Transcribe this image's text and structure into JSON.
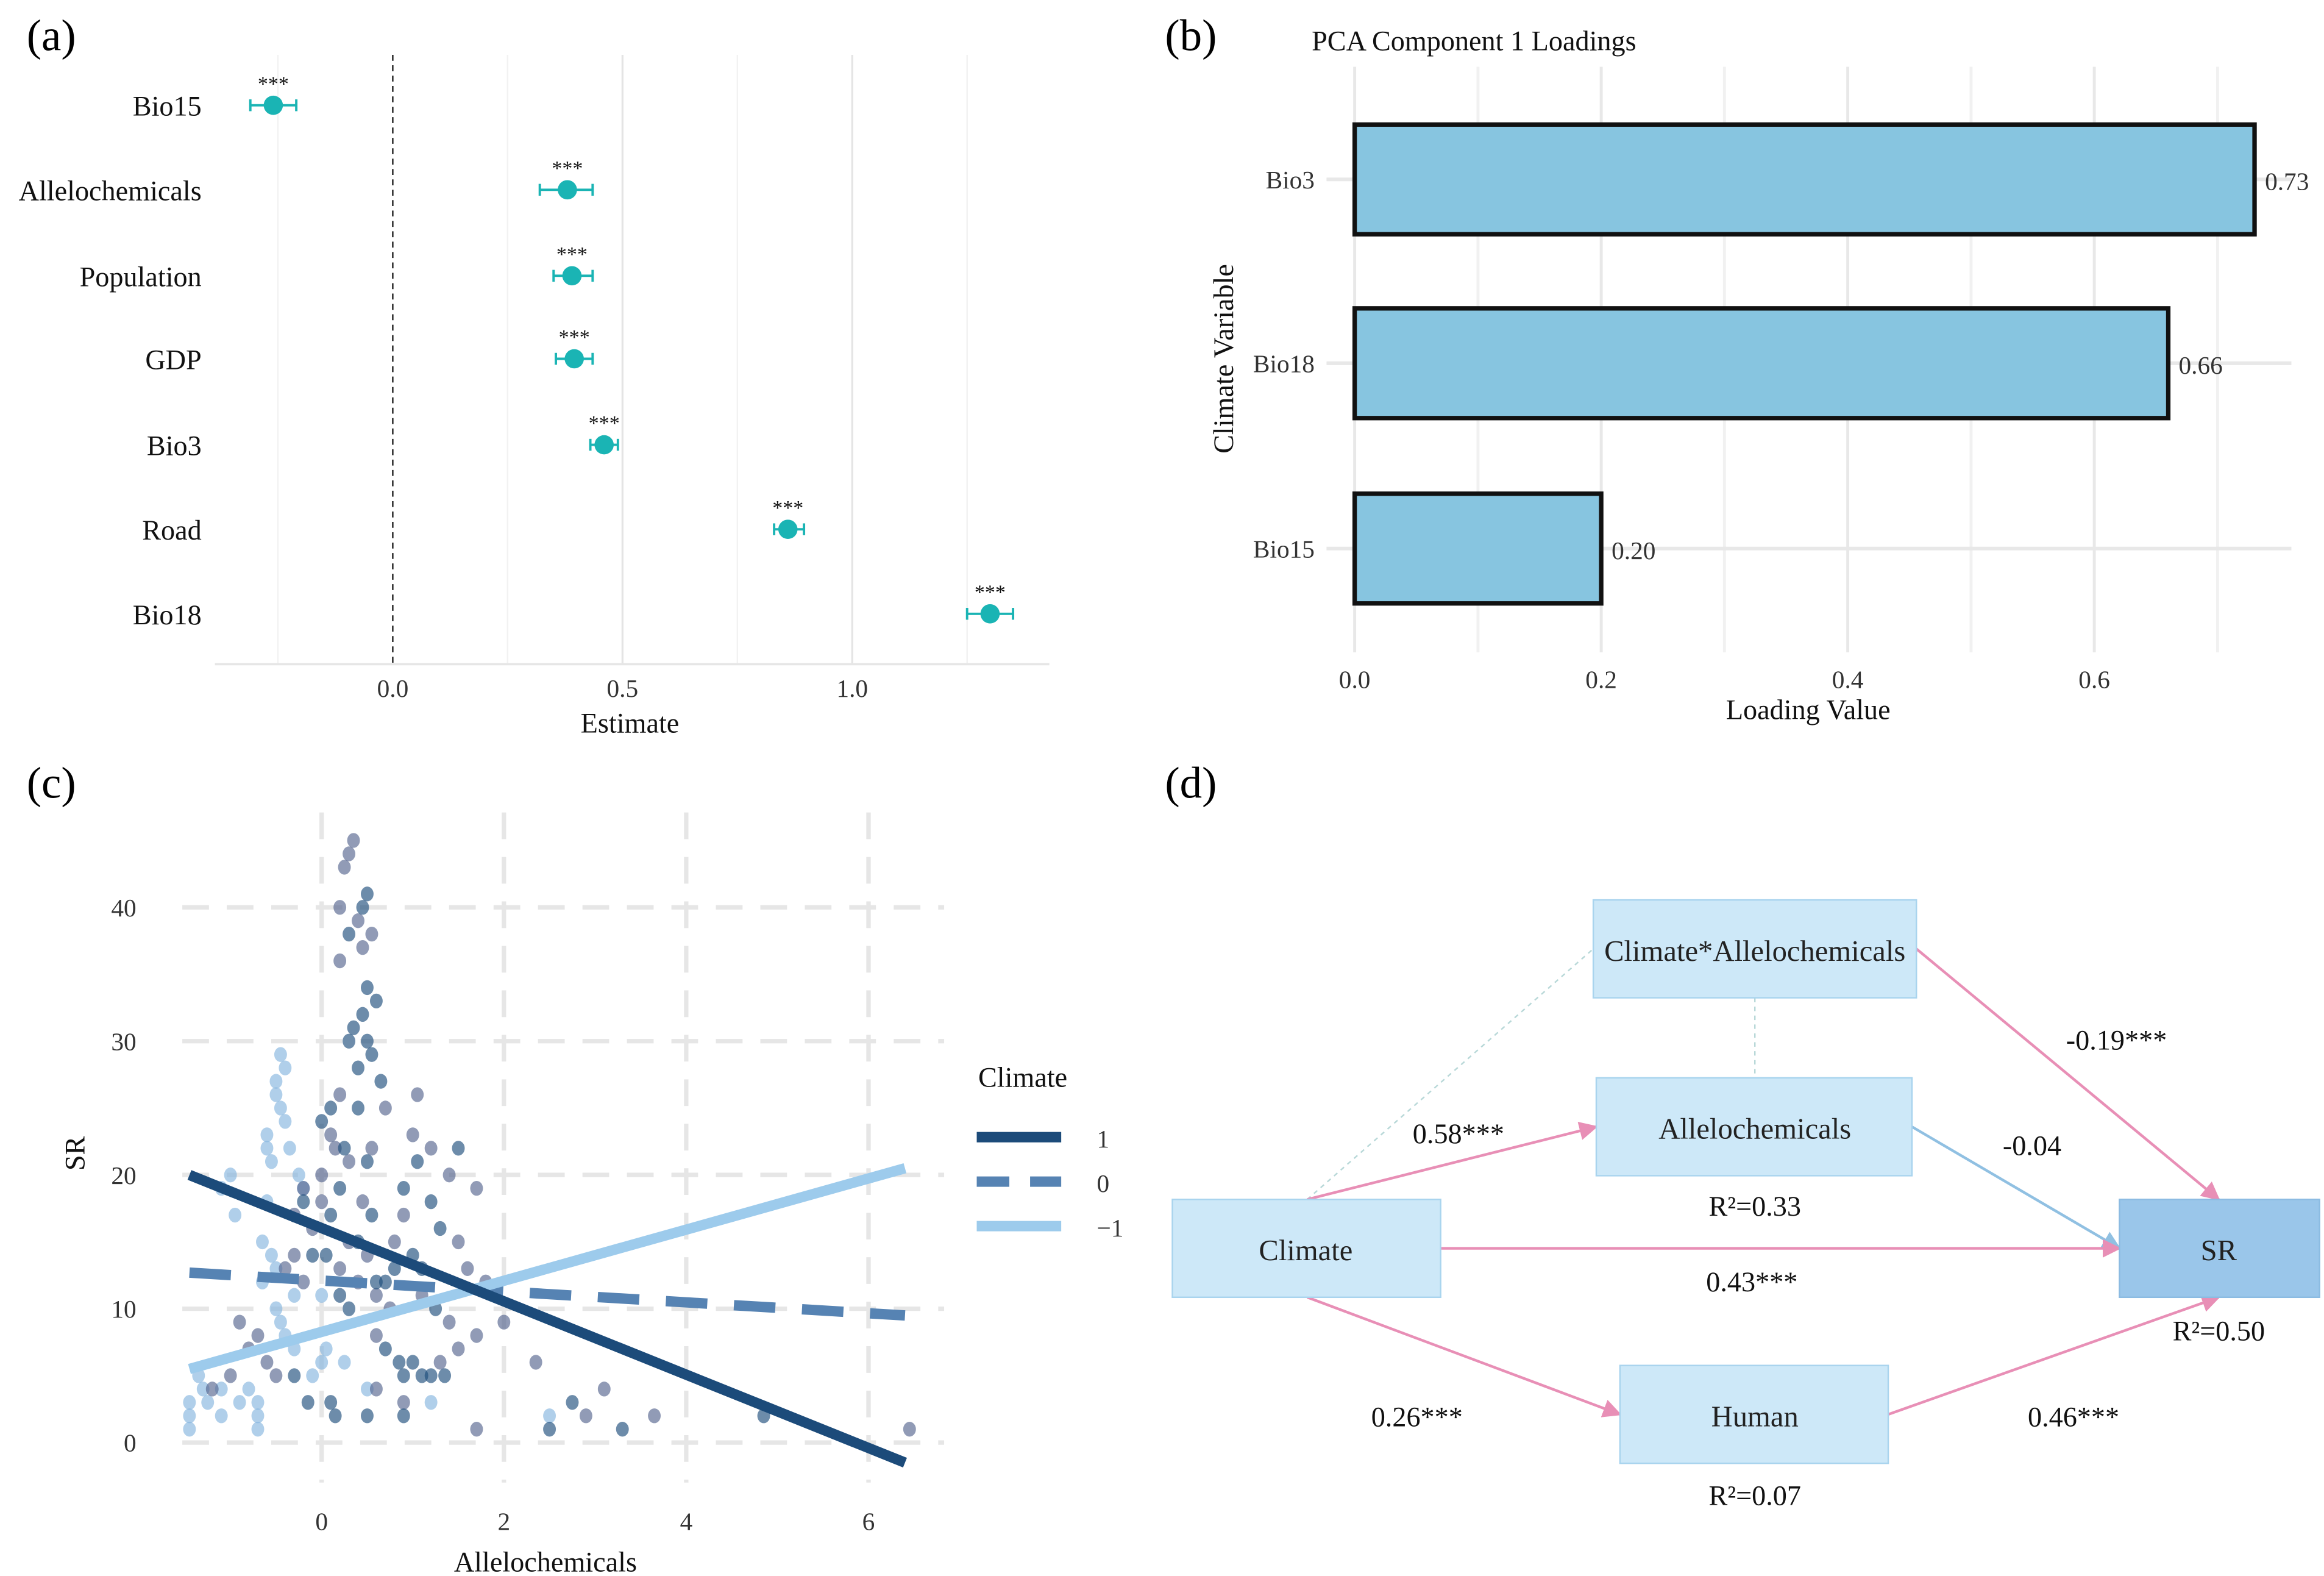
{
  "panels": {
    "a": "(a)",
    "b": "(b)",
    "c": "(c)",
    "d": "(d)"
  },
  "chart_data": [
    {
      "id": "a",
      "type": "scatter",
      "title": "",
      "xlabel": "Estimate",
      "ylabel": "",
      "xlim": [
        -0.38,
        1.43
      ],
      "xticks": [
        "0.0",
        "0.5",
        "1.0"
      ],
      "xtick_values": [
        0,
        0.5,
        1.0
      ],
      "reference_line": 0,
      "categories": [
        "Bio15",
        "Allelochemicals",
        "Population",
        "GDP",
        "Bio3",
        "Road",
        "Bio18"
      ],
      "estimates": [
        -0.26,
        0.38,
        0.39,
        0.395,
        0.46,
        0.86,
        1.3
      ],
      "ci_low": [
        -0.31,
        0.32,
        0.35,
        0.355,
        0.43,
        0.83,
        1.25
      ],
      "ci_high": [
        -0.21,
        0.435,
        0.435,
        0.435,
        0.49,
        0.895,
        1.35
      ],
      "significance": [
        "***",
        "***",
        "***",
        "***",
        "***",
        "***",
        "***"
      ],
      "color": "#1ab4b4"
    },
    {
      "id": "b",
      "type": "bar",
      "title": "PCA Component 1 Loadings",
      "xlabel": "Loading Value",
      "ylabel": "Climate Variable",
      "categories": [
        "Bio3",
        "Bio18",
        "Bio15"
      ],
      "values": [
        0.73,
        0.66,
        0.2
      ],
      "value_labels": [
        "0.73",
        "0.66",
        "0.20"
      ],
      "xticks": [
        "0.0",
        "0.2",
        "0.4",
        "0.6"
      ],
      "xtick_values": [
        0,
        0.2,
        0.4,
        0.6
      ],
      "xlim": [
        0,
        0.76
      ],
      "color": "#87c5e0"
    },
    {
      "id": "c",
      "type": "scatter",
      "xlabel": "Allelochemicals",
      "ylabel": "SR",
      "xlim": [
        -1.5,
        6.6
      ],
      "ylim": [
        -3,
        48
      ],
      "xticks": [
        "0",
        "2",
        "4",
        "6"
      ],
      "xtick_values": [
        0,
        2,
        4,
        6
      ],
      "yticks": [
        "0",
        "10",
        "20",
        "30",
        "40"
      ],
      "ytick_values": [
        0,
        10,
        20,
        30,
        40
      ],
      "legend": {
        "title": "Climate",
        "position": "right",
        "entries": [
          {
            "label": "1",
            "color": "#1c4b7a",
            "style": "solid"
          },
          {
            "label": "0",
            "color": "#5683b3",
            "style": "dashed"
          },
          {
            "label": "−1",
            "color": "#9dcbec",
            "style": "solid"
          }
        ]
      },
      "lines": [
        {
          "climate": "1",
          "x": [
            -1.45,
            6.4
          ],
          "y": [
            20,
            -1.5
          ]
        },
        {
          "climate": "0",
          "x": [
            -1.45,
            6.4
          ],
          "y": [
            12.7,
            9.5
          ]
        },
        {
          "climate": "−1",
          "x": [
            -1.45,
            6.4
          ],
          "y": [
            5.5,
            20.5
          ]
        }
      ],
      "point_colors": {
        "1": "#1f4e7d",
        "0": "#56658f",
        "-1": "#86b6df"
      },
      "points": [
        [
          -1.45,
          1,
          -1
        ],
        [
          -1.45,
          2,
          -1
        ],
        [
          -1.45,
          3,
          -1
        ],
        [
          -1.35,
          5,
          -1
        ],
        [
          -1.3,
          4,
          -1
        ],
        [
          -1.25,
          3,
          -1
        ],
        [
          -1.1,
          2,
          -1
        ],
        [
          -1.1,
          4,
          -1
        ],
        [
          -1.0,
          20,
          -1
        ],
        [
          -1.1,
          19,
          -1
        ],
        [
          -0.95,
          17,
          -1
        ],
        [
          -0.9,
          3,
          -1
        ],
        [
          -0.8,
          4,
          -1
        ],
        [
          -0.7,
          1,
          -1
        ],
        [
          -0.7,
          2,
          -1
        ],
        [
          -0.7,
          3,
          -1
        ],
        [
          -0.65,
          15,
          -1
        ],
        [
          -0.6,
          18,
          -1
        ],
        [
          -0.6,
          22,
          -1
        ],
        [
          -0.6,
          23,
          -1
        ],
        [
          -0.55,
          21,
          -1
        ],
        [
          -0.5,
          26,
          -1
        ],
        [
          -0.5,
          27,
          -1
        ],
        [
          -0.45,
          29,
          -1
        ],
        [
          -0.45,
          25,
          -1
        ],
        [
          -0.4,
          24,
          -1
        ],
        [
          -0.4,
          28,
          -1
        ],
        [
          -0.35,
          22,
          -1
        ],
        [
          -0.5,
          10,
          -1
        ],
        [
          -0.45,
          9,
          -1
        ],
        [
          -0.4,
          8,
          -1
        ],
        [
          -0.3,
          7,
          -1
        ],
        [
          -0.1,
          5,
          -1
        ],
        [
          0.0,
          6,
          -1
        ],
        [
          0.05,
          7,
          -1
        ],
        [
          0.25,
          6,
          -1
        ],
        [
          0.5,
          4,
          -1
        ],
        [
          1.2,
          3,
          -1
        ],
        [
          2.5,
          2,
          -1
        ],
        [
          -0.55,
          14,
          -1
        ],
        [
          -0.5,
          13,
          -1
        ],
        [
          -0.65,
          12,
          -1
        ],
        [
          -0.3,
          11,
          -1
        ],
        [
          -0.25,
          20,
          -1
        ],
        [
          -0.2,
          19,
          -1
        ],
        [
          0,
          11,
          -1
        ],
        [
          -1.2,
          4,
          0
        ],
        [
          -1.0,
          5,
          0
        ],
        [
          -0.9,
          9,
          0
        ],
        [
          -0.8,
          7,
          0
        ],
        [
          -0.7,
          8,
          0
        ],
        [
          -0.6,
          6,
          0
        ],
        [
          -0.5,
          5,
          0
        ],
        [
          -0.4,
          13,
          0
        ],
        [
          -0.3,
          14,
          0
        ],
        [
          -0.3,
          17,
          0
        ],
        [
          -0.2,
          12,
          0
        ],
        [
          -0.2,
          19,
          0
        ],
        [
          -0.1,
          16,
          0
        ],
        [
          0,
          20,
          0
        ],
        [
          0,
          18,
          0
        ],
        [
          0.1,
          23,
          0
        ],
        [
          0.15,
          22,
          0
        ],
        [
          0.2,
          26,
          0
        ],
        [
          0.2,
          13,
          0
        ],
        [
          0.3,
          15,
          0
        ],
        [
          0.3,
          21,
          0
        ],
        [
          0.4,
          12,
          0
        ],
        [
          0.45,
          18,
          0
        ],
        [
          0.5,
          14,
          0
        ],
        [
          0.55,
          22,
          0
        ],
        [
          0.6,
          11,
          0
        ],
        [
          0.6,
          8,
          0
        ],
        [
          0.7,
          25,
          0
        ],
        [
          0.75,
          10,
          0
        ],
        [
          0.8,
          15,
          0
        ],
        [
          0.9,
          17,
          0
        ],
        [
          1.0,
          23,
          0
        ],
        [
          1.05,
          26,
          0
        ],
        [
          1.1,
          11,
          0
        ],
        [
          1.2,
          22,
          0
        ],
        [
          1.3,
          6,
          0
        ],
        [
          1.4,
          9,
          0
        ],
        [
          1.5,
          7,
          0
        ],
        [
          1.6,
          13,
          0
        ],
        [
          1.7,
          8,
          0
        ],
        [
          1.8,
          12,
          0
        ],
        [
          2.0,
          9,
          0
        ],
        [
          2.35,
          6,
          0
        ],
        [
          2.9,
          2,
          0
        ],
        [
          3.1,
          4,
          0
        ],
        [
          3.65,
          2,
          0
        ],
        [
          6.45,
          1,
          0
        ],
        [
          1.7,
          1,
          0
        ],
        [
          0.9,
          3,
          0
        ],
        [
          0.6,
          4,
          0
        ],
        [
          1.4,
          20,
          0
        ],
        [
          1.7,
          19,
          0
        ],
        [
          1.5,
          15,
          0
        ],
        [
          0.25,
          43,
          0
        ],
        [
          0.3,
          44,
          0
        ],
        [
          0.35,
          45,
          0
        ],
        [
          0.2,
          40,
          0
        ],
        [
          0.4,
          39,
          0
        ],
        [
          0.45,
          37,
          0
        ],
        [
          0.55,
          38,
          0
        ],
        [
          0.2,
          36,
          0
        ],
        [
          0,
          24,
          1
        ],
        [
          0.1,
          25,
          1
        ],
        [
          0.05,
          14,
          1
        ],
        [
          0.1,
          17,
          1
        ],
        [
          0.2,
          19,
          1
        ],
        [
          0.25,
          22,
          1
        ],
        [
          0.3,
          30,
          1
        ],
        [
          0.35,
          31,
          1
        ],
        [
          0.4,
          28,
          1
        ],
        [
          0.45,
          32,
          1
        ],
        [
          0.5,
          30,
          1
        ],
        [
          0.55,
          29,
          1
        ],
        [
          0.6,
          33,
          1
        ],
        [
          0.65,
          27,
          1
        ],
        [
          0.5,
          41,
          1
        ],
        [
          0.45,
          40,
          1
        ],
        [
          0.3,
          38,
          1
        ],
        [
          0.5,
          34,
          1
        ],
        [
          0.4,
          25,
          1
        ],
        [
          0.5,
          21,
          1
        ],
        [
          0.55,
          17,
          1
        ],
        [
          0.6,
          12,
          1
        ],
        [
          0.7,
          7,
          1
        ],
        [
          0.8,
          13,
          1
        ],
        [
          0.9,
          19,
          1
        ],
        [
          1.05,
          21,
          1
        ],
        [
          1.1,
          13,
          1
        ],
        [
          1.25,
          10,
          1
        ],
        [
          1.3,
          16,
          1
        ],
        [
          1.2,
          18,
          1
        ],
        [
          1.5,
          22,
          1
        ],
        [
          1.0,
          6,
          1
        ],
        [
          1.1,
          5,
          1
        ],
        [
          1.2,
          5,
          1
        ],
        [
          1.35,
          5,
          1
        ],
        [
          0.9,
          5,
          1
        ],
        [
          0.85,
          6,
          1
        ],
        [
          0.15,
          2,
          1
        ],
        [
          0.5,
          2,
          1
        ],
        [
          0.9,
          2,
          1
        ],
        [
          0.1,
          3,
          1
        ],
        [
          -0.15,
          3,
          1
        ],
        [
          -0.3,
          5,
          1
        ],
        [
          -0.2,
          18,
          1
        ],
        [
          2.75,
          3,
          1
        ],
        [
          3.3,
          1,
          1
        ],
        [
          4.85,
          2,
          1
        ],
        [
          2.5,
          1,
          1
        ],
        [
          0.4,
          15,
          1
        ],
        [
          0.7,
          12,
          1
        ],
        [
          1.0,
          14,
          1
        ],
        [
          0.2,
          11,
          1
        ],
        [
          0.3,
          10,
          1
        ],
        [
          -0.1,
          14,
          1
        ]
      ]
    },
    {
      "id": "d",
      "type": "diagram",
      "nodes": {
        "climate": "Climate",
        "interaction": "Climate*Allelochemicals",
        "allelochemicals": "Allelochemicals",
        "human": "Human",
        "sr": "SR"
      },
      "r2": {
        "allelochemicals": "R²=0.33",
        "human": "R²=0.07",
        "sr": "R²=0.50"
      },
      "paths": {
        "climate_allelochemicals": "0.58***",
        "allelochemicals_sr": "-0.04",
        "interaction_sr": "-0.19***",
        "climate_sr": "0.43***",
        "climate_human": "0.26***",
        "human_sr": "0.46***"
      },
      "colors": {
        "box": "#cde8f8",
        "sr_box": "#9ac6ea",
        "positive": "#e88fb6",
        "negative": "#90c0e2"
      }
    }
  ]
}
